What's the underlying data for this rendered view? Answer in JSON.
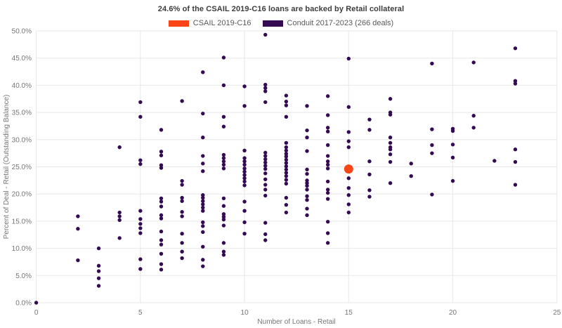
{
  "title": "24.6% of the CSAIL 2019-C16 loans are backed by Retail collateral",
  "legend": [
    {
      "label": "CSAIL 2019-C16",
      "color": "#fa4616"
    },
    {
      "label": "Conduit 2017-2023 (266 deals)",
      "color": "#340a53"
    }
  ],
  "chart_data": {
    "type": "scatter",
    "title": "24.6% of the CSAIL 2019-C16 loans are backed by Retail collateral",
    "xlabel": "Number of Loans - Retail",
    "ylabel": "Percent of Deal - Retail (Outstanding Balance)",
    "xlim": [
      0,
      25
    ],
    "ylim": [
      0,
      50
    ],
    "grid": true,
    "legend_position": "top-center",
    "x_ticks": [
      0,
      5,
      10,
      15,
      20,
      25
    ],
    "x_tick_labels": [
      "0",
      "5",
      "10",
      "15",
      "20",
      "25"
    ],
    "y_ticks": [
      0,
      5,
      10,
      15,
      20,
      25,
      30,
      35,
      40,
      45,
      50
    ],
    "y_tick_labels": [
      "0.0%",
      "5.0%",
      "10.0%",
      "15.0%",
      "20.0%",
      "25.0%",
      "30.0%",
      "35.0%",
      "40.0%",
      "45.0%",
      "50.0%"
    ],
    "series": [
      {
        "name": "Conduit 2017-2023 (266 deals)",
        "color": "#340a53",
        "marker_radius": 2.7,
        "points": [
          [
            0,
            0.0
          ],
          [
            2,
            15.9
          ],
          [
            2,
            13.6
          ],
          [
            2,
            7.8
          ],
          [
            3,
            10.0
          ],
          [
            3,
            6.8
          ],
          [
            3,
            5.8
          ],
          [
            3,
            4.5
          ],
          [
            3,
            3.1
          ],
          [
            4,
            28.6
          ],
          [
            4,
            16.6
          ],
          [
            4,
            15.9
          ],
          [
            4,
            15.2
          ],
          [
            4,
            11.9
          ],
          [
            5,
            36.9
          ],
          [
            5,
            34.2
          ],
          [
            5,
            26.2
          ],
          [
            5,
            25.5
          ],
          [
            5,
            16.9
          ],
          [
            5,
            15.4
          ],
          [
            5,
            14.5
          ],
          [
            5,
            13.7
          ],
          [
            5,
            12.8
          ],
          [
            5,
            8.0
          ],
          [
            5,
            6.2
          ],
          [
            6,
            31.8
          ],
          [
            6,
            27.8
          ],
          [
            6,
            27.1
          ],
          [
            6,
            25.3
          ],
          [
            6,
            24.8
          ],
          [
            6,
            19.2
          ],
          [
            6,
            18.6
          ],
          [
            6,
            17.7
          ],
          [
            6,
            16.1
          ],
          [
            6,
            15.5
          ],
          [
            6,
            13.1
          ],
          [
            6,
            11.5
          ],
          [
            6,
            10.7
          ],
          [
            6,
            9.0
          ],
          [
            6,
            7.1
          ],
          [
            6,
            6.1
          ],
          [
            7,
            37.1
          ],
          [
            7,
            22.4
          ],
          [
            7,
            21.7
          ],
          [
            7,
            19.3
          ],
          [
            7,
            18.7
          ],
          [
            7,
            16.7
          ],
          [
            7,
            15.9
          ],
          [
            7,
            12.7
          ],
          [
            7,
            11.0
          ],
          [
            7,
            9.4
          ],
          [
            7,
            8.2
          ],
          [
            8,
            42.4
          ],
          [
            8,
            34.8
          ],
          [
            8,
            30.4
          ],
          [
            8,
            27.0
          ],
          [
            8,
            25.6
          ],
          [
            8,
            24.2
          ],
          [
            8,
            19.8
          ],
          [
            8,
            19.3
          ],
          [
            8,
            18.7
          ],
          [
            8,
            18.1
          ],
          [
            8,
            17.5
          ],
          [
            8,
            16.9
          ],
          [
            8,
            14.8
          ],
          [
            8,
            14.1
          ],
          [
            8,
            13.0
          ],
          [
            8,
            10.3
          ],
          [
            8,
            7.9
          ],
          [
            8,
            6.7
          ],
          [
            9,
            45.1
          ],
          [
            9,
            40.0
          ],
          [
            9,
            34.2
          ],
          [
            9,
            32.4
          ],
          [
            9,
            27.2
          ],
          [
            9,
            26.6
          ],
          [
            9,
            26.0
          ],
          [
            9,
            25.4
          ],
          [
            9,
            24.7
          ],
          [
            9,
            19.2
          ],
          [
            9,
            17.8
          ],
          [
            9,
            16.3
          ],
          [
            9,
            15.8
          ],
          [
            9,
            15.3
          ],
          [
            9,
            14.2
          ],
          [
            9,
            11.0
          ],
          [
            9,
            9.4
          ],
          [
            9,
            8.8
          ],
          [
            10,
            39.8
          ],
          [
            10,
            36.2
          ],
          [
            10,
            28.0
          ],
          [
            10,
            26.6
          ],
          [
            10,
            26.0
          ],
          [
            10,
            25.4
          ],
          [
            10,
            24.7
          ],
          [
            10,
            24.1
          ],
          [
            10,
            23.5
          ],
          [
            10,
            22.9
          ],
          [
            10,
            22.3
          ],
          [
            10,
            21.6
          ],
          [
            10,
            18.6
          ],
          [
            10,
            16.9
          ],
          [
            10,
            14.8
          ],
          [
            10,
            12.7
          ],
          [
            11,
            49.3
          ],
          [
            11,
            40.1
          ],
          [
            11,
            39.5
          ],
          [
            11,
            38.9
          ],
          [
            11,
            36.9
          ],
          [
            11,
            27.6
          ],
          [
            11,
            27.0
          ],
          [
            11,
            26.4
          ],
          [
            11,
            25.8
          ],
          [
            11,
            25.2
          ],
          [
            11,
            24.6
          ],
          [
            11,
            23.8
          ],
          [
            11,
            22.7
          ],
          [
            11,
            21.7
          ],
          [
            11,
            20.8
          ],
          [
            11,
            19.7
          ],
          [
            11,
            14.7
          ],
          [
            11,
            12.6
          ],
          [
            11,
            11.5
          ],
          [
            12,
            38.1
          ],
          [
            12,
            37.0
          ],
          [
            12,
            36.3
          ],
          [
            12,
            34.2
          ],
          [
            12,
            29.4
          ],
          [
            12,
            28.6
          ],
          [
            12,
            28.0
          ],
          [
            12,
            27.4
          ],
          [
            12,
            26.9
          ],
          [
            12,
            26.3
          ],
          [
            12,
            25.7
          ],
          [
            12,
            25.1
          ],
          [
            12,
            24.5
          ],
          [
            12,
            23.9
          ],
          [
            12,
            23.3
          ],
          [
            12,
            22.6
          ],
          [
            12,
            21.9
          ],
          [
            12,
            19.3
          ],
          [
            12,
            18.0
          ],
          [
            12,
            16.6
          ],
          [
            13,
            36.2
          ],
          [
            13,
            31.7
          ],
          [
            13,
            30.4
          ],
          [
            13,
            27.9
          ],
          [
            13,
            24.5
          ],
          [
            13,
            23.7
          ],
          [
            13,
            22.5
          ],
          [
            13,
            22.0
          ],
          [
            13,
            21.5
          ],
          [
            13,
            20.8
          ],
          [
            13,
            19.6
          ],
          [
            13,
            18.9
          ],
          [
            13,
            17.3
          ],
          [
            13,
            16.1
          ],
          [
            14,
            38.0
          ],
          [
            14,
            34.5
          ],
          [
            14,
            32.2
          ],
          [
            14,
            31.5
          ],
          [
            14,
            29.0
          ],
          [
            14,
            27.0
          ],
          [
            14,
            26.0
          ],
          [
            14,
            25.4
          ],
          [
            14,
            24.7
          ],
          [
            14,
            22.3
          ],
          [
            14,
            20.8
          ],
          [
            14,
            20.2
          ],
          [
            14,
            19.1
          ],
          [
            14,
            14.9
          ],
          [
            14,
            12.8
          ],
          [
            14,
            11.0
          ],
          [
            15,
            44.9
          ],
          [
            15,
            36.0
          ],
          [
            15,
            31.4
          ],
          [
            15,
            29.7
          ],
          [
            15,
            28.6
          ],
          [
            15,
            22.9
          ],
          [
            15,
            21.1
          ],
          [
            15,
            19.8
          ],
          [
            15,
            18.1
          ],
          [
            15,
            16.6
          ],
          [
            16,
            33.7
          ],
          [
            16,
            31.8
          ],
          [
            16,
            26.0
          ],
          [
            16,
            23.6
          ],
          [
            16,
            20.7
          ],
          [
            16,
            19.5
          ],
          [
            17,
            37.5
          ],
          [
            17,
            35.0
          ],
          [
            17,
            34.6
          ],
          [
            17,
            30.4
          ],
          [
            17,
            29.4
          ],
          [
            17,
            28.6
          ],
          [
            17,
            28.2
          ],
          [
            17,
            27.3
          ],
          [
            17,
            25.9
          ],
          [
            17,
            22.0
          ],
          [
            18,
            25.6
          ],
          [
            18,
            23.3
          ],
          [
            19,
            44.0
          ],
          [
            19,
            31.9
          ],
          [
            19,
            29.0
          ],
          [
            19,
            27.5
          ],
          [
            19,
            19.9
          ],
          [
            20,
            32.0
          ],
          [
            20,
            31.6
          ],
          [
            20,
            29.1
          ],
          [
            20,
            26.7
          ],
          [
            20,
            22.4
          ],
          [
            21,
            44.2
          ],
          [
            21,
            34.4
          ],
          [
            21,
            32.2
          ],
          [
            22,
            26.1
          ],
          [
            23,
            46.8
          ],
          [
            23,
            40.8
          ],
          [
            23,
            40.3
          ],
          [
            23,
            28.2
          ],
          [
            23,
            25.9
          ],
          [
            23,
            21.7
          ]
        ]
      },
      {
        "name": "CSAIL 2019-C16",
        "color": "#fa4616",
        "marker_radius": 6.5,
        "points": [
          [
            15,
            24.6
          ]
        ]
      }
    ]
  }
}
